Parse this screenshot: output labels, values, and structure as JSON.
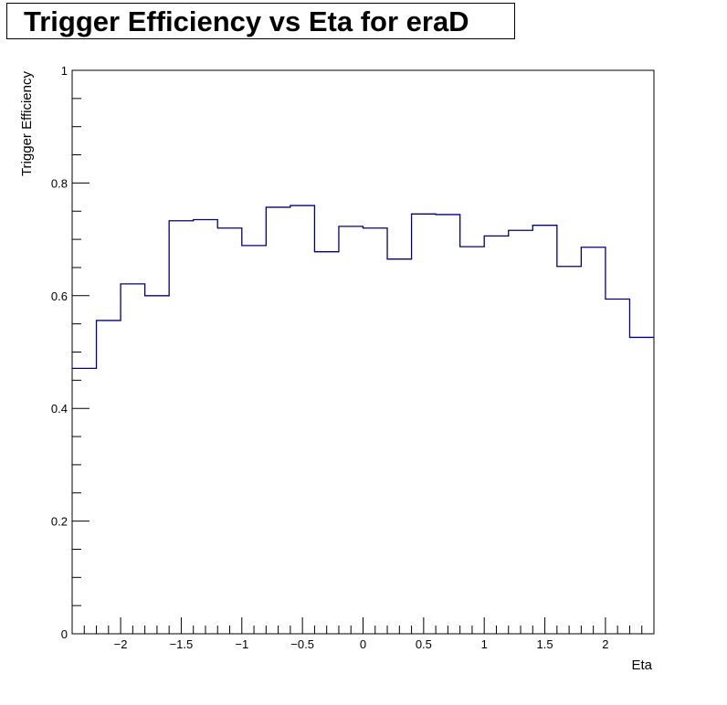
{
  "title": "Trigger Efficiency vs Eta for eraD",
  "chart_data": {
    "type": "histogram",
    "title": "Trigger Efficiency vs Eta for eraD",
    "xlabel": "Eta",
    "ylabel": "Trigger Efficiency",
    "xlim": [
      -2.4,
      2.4
    ],
    "ylim": [
      0,
      1
    ],
    "x_ticks": [
      -2,
      -1.5,
      -1,
      -0.5,
      0,
      0.5,
      1,
      1.5,
      2
    ],
    "x_tick_labels": [
      "−2",
      "−1.5",
      "−1",
      "−0.5",
      "0",
      "0.5",
      "1",
      "1.5",
      "2"
    ],
    "y_ticks": [
      0,
      0.2,
      0.4,
      0.6,
      0.8,
      1
    ],
    "y_tick_labels": [
      "0",
      "0.2",
      "0.4",
      "0.6",
      "0.8",
      "1"
    ],
    "bin_edges": [
      -2.4,
      -2.2,
      -2.0,
      -1.8,
      -1.6,
      -1.4,
      -1.2,
      -1.0,
      -0.8,
      -0.6,
      -0.4,
      -0.2,
      0.0,
      0.2,
      0.4,
      0.6,
      0.8,
      1.0,
      1.2,
      1.4,
      1.6,
      1.8,
      2.0,
      2.2,
      2.4
    ],
    "values": [
      0.471,
      0.556,
      0.621,
      0.6,
      0.733,
      0.735,
      0.72,
      0.689,
      0.757,
      0.76,
      0.678,
      0.723,
      0.72,
      0.665,
      0.745,
      0.744,
      0.687,
      0.706,
      0.716,
      0.725,
      0.652,
      0.686,
      0.594,
      0.526
    ],
    "line_color": "#000080",
    "grid": false
  }
}
